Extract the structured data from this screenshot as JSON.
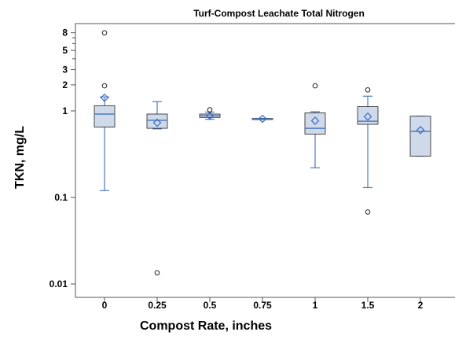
{
  "chart_data": {
    "type": "box",
    "title": "Turf-Compost Leachate Total Nitrogen",
    "xlabel": "Compost Rate, inches",
    "ylabel": "TKN, mg/L",
    "yscale": "log",
    "ylim": [
      0.009,
      10
    ],
    "y_ticks": [
      {
        "value": 0.01,
        "label": "0.01"
      },
      {
        "value": 0.1,
        "label": "0.1"
      },
      {
        "value": 1,
        "label": "1"
      },
      {
        "value": 2,
        "label": "2"
      },
      {
        "value": 3,
        "label": "3"
      },
      {
        "value": 5,
        "label": "5"
      },
      {
        "value": 8,
        "label": "8"
      }
    ],
    "y_minor_ticks": [
      4,
      6,
      7
    ],
    "categories": [
      "0",
      "0.25",
      "0.5",
      "0.75",
      "1",
      "1.5",
      "2"
    ],
    "boxes": [
      {
        "category": "0",
        "min": 0.12,
        "q1": 0.65,
        "median": 0.92,
        "q3": 1.15,
        "max": 1.45,
        "mean": 1.42,
        "outliers": [
          8.0,
          1.95
        ]
      },
      {
        "category": "0.25",
        "min": 0.62,
        "q1": 0.63,
        "median": 0.78,
        "q3": 0.92,
        "max": 1.28,
        "mean": 0.73,
        "outliers": [
          0.0135
        ]
      },
      {
        "category": "0.5",
        "min": 0.8,
        "q1": 0.84,
        "median": 0.88,
        "q3": 0.92,
        "max": 0.97,
        "mean": 0.88,
        "outliers": [
          1.03
        ]
      },
      {
        "category": "0.75",
        "min": 0.8,
        "q1": 0.8,
        "median": 0.81,
        "q3": 0.82,
        "max": 0.82,
        "mean": 0.81,
        "outliers": []
      },
      {
        "category": "1",
        "min": 0.22,
        "q1": 0.54,
        "median": 0.63,
        "q3": 0.95,
        "max": 0.98,
        "mean": 0.77,
        "outliers": [
          1.95
        ]
      },
      {
        "category": "1.5",
        "min": 0.13,
        "q1": 0.7,
        "median": 0.76,
        "q3": 1.12,
        "max": 1.48,
        "mean": 0.86,
        "outliers": [
          1.75,
          0.068
        ]
      },
      {
        "category": "2",
        "min": 0.3,
        "q1": 0.3,
        "median": 0.58,
        "q3": 0.87,
        "max": 0.87,
        "mean": 0.6,
        "outliers": []
      }
    ],
    "colors": {
      "box_fill": "#cfd9ea",
      "box_stroke": "#222222",
      "line": "#4e7bbf",
      "mean_marker": "#3b6cc4",
      "outlier": "#222222",
      "frame": "#555555"
    },
    "grid": false,
    "legend": "none"
  }
}
